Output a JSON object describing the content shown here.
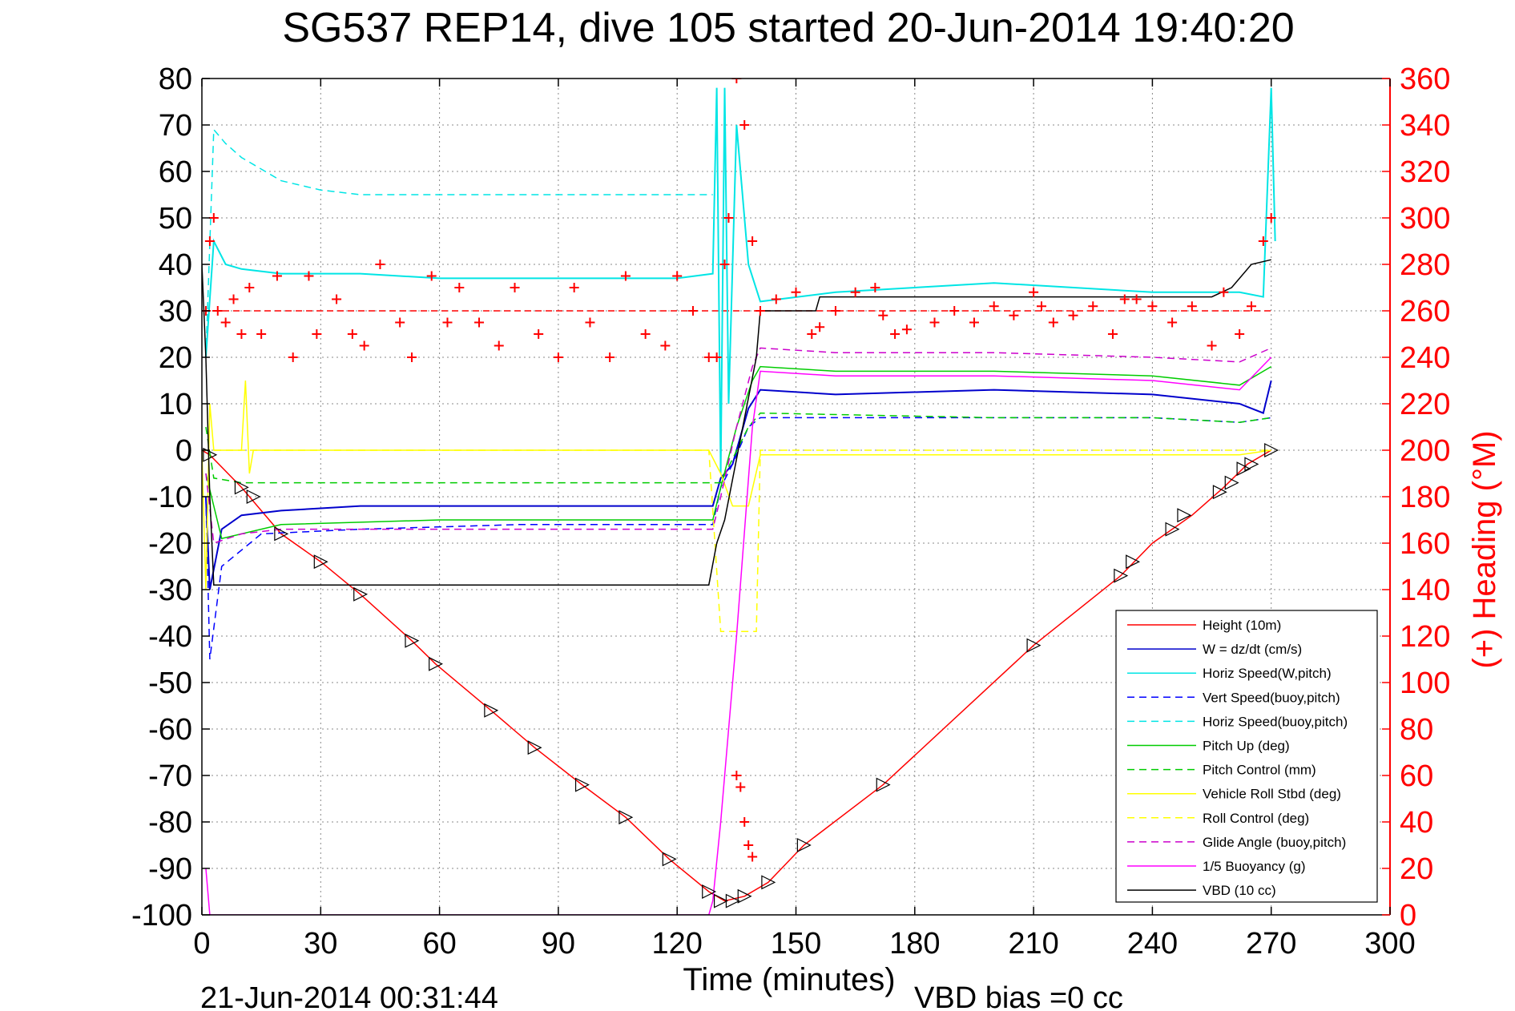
{
  "chart_data": {
    "type": "line",
    "title": "SG537 REP14, dive 105 started 20-Jun-2014 19:40:20",
    "xlabel": "Time (minutes)",
    "ylabel": "",
    "y2label": "(+) Heading (°M)",
    "xlim": [
      0,
      300
    ],
    "ylim": [
      -100,
      80
    ],
    "y2lim": [
      0,
      360
    ],
    "xticks": [
      "0",
      "30",
      "60",
      "90",
      "120",
      "150",
      "180",
      "210",
      "240",
      "270",
      "300"
    ],
    "yticks": [
      "80",
      "70",
      "60",
      "50",
      "40",
      "30",
      "20",
      "10",
      "0",
      "-10",
      "-20",
      "-30",
      "-40",
      "-50",
      "-60",
      "-70",
      "-80",
      "-90",
      "-100"
    ],
    "y2ticks": [
      "360",
      "340",
      "320",
      "300",
      "280",
      "260",
      "240",
      "220",
      "200",
      "180",
      "160",
      "140",
      "120",
      "100",
      "80",
      "60",
      "40",
      "20",
      "0"
    ],
    "grid": true,
    "legend_position": "bottom-right",
    "footer_left": "21-Jun-2014 00:31:44",
    "footer_right": "VBD bias =0 cc",
    "series": [
      {
        "name": "Height (10m)",
        "color": "#ff0000",
        "style": "solid",
        "x": [
          0,
          2,
          10,
          20,
          30,
          40,
          53,
          59,
          73,
          84,
          96,
          107,
          118,
          128,
          132,
          137,
          143,
          152,
          172,
          210,
          232,
          240,
          250,
          258,
          264,
          270
        ],
        "y": [
          0,
          -1,
          -8,
          -18,
          -24,
          -31,
          -41,
          -46,
          -56,
          -64,
          -72,
          -79,
          -88,
          -95,
          -97,
          -96,
          -93,
          -85,
          -72,
          -42,
          -27,
          -20,
          -14,
          -8,
          -3,
          0
        ]
      },
      {
        "name": "W = dz/dt (cm/s)",
        "color": "#0000cc",
        "style": "solid",
        "x": [
          1,
          2,
          5,
          10,
          20,
          40,
          70,
          100,
          129,
          131,
          134,
          138,
          141,
          160,
          200,
          240,
          262,
          268,
          270
        ],
        "y": [
          -10,
          -30,
          -17,
          -14,
          -13,
          -12,
          -12,
          -12,
          -12,
          -6,
          -3,
          9,
          13,
          12,
          13,
          12,
          10,
          8,
          15
        ]
      },
      {
        "name": "Horiz Speed(W,pitch)",
        "color": "#00e5e5",
        "style": "solid",
        "x": [
          1,
          3,
          6,
          10,
          20,
          40,
          60,
          80,
          100,
          120,
          129,
          130,
          131,
          132,
          133,
          135,
          138,
          141,
          160,
          200,
          240,
          262,
          268,
          270,
          271
        ],
        "y": [
          20,
          45,
          40,
          39,
          38,
          38,
          37,
          37,
          37,
          37,
          38,
          78,
          -5,
          78,
          10,
          70,
          40,
          32,
          34,
          36,
          34,
          34,
          33,
          78,
          45
        ]
      },
      {
        "name": "Vert Speed(buoy,pitch)",
        "color": "#0000ff",
        "style": "dashed",
        "x": [
          1,
          2,
          5,
          15,
          40,
          80,
          129,
          131,
          134,
          138,
          141,
          160,
          200,
          240,
          262,
          270
        ],
        "y": [
          -10,
          -45,
          -25,
          -18,
          -17,
          -16,
          -16,
          -8,
          -3,
          5,
          7,
          7,
          7,
          7,
          6,
          7
        ]
      },
      {
        "name": "Horiz Speed(buoy,pitch)",
        "color": "#00e5e5",
        "style": "dashed",
        "x": [
          1,
          3,
          6,
          10,
          20,
          30,
          40,
          60,
          80,
          100,
          128,
          129
        ],
        "y": [
          20,
          69,
          66,
          63,
          58,
          56,
          55,
          55,
          55,
          55,
          55,
          55
        ]
      },
      {
        "name": "Pitch Up (deg)",
        "color": "#00cc00",
        "style": "solid",
        "x": [
          1,
          5,
          20,
          60,
          100,
          129,
          131,
          135,
          139,
          141,
          160,
          200,
          240,
          262,
          270
        ],
        "y": [
          -5,
          -19,
          -16,
          -15,
          -15,
          -15,
          -8,
          5,
          15,
          18,
          17,
          17,
          16,
          14,
          18
        ]
      },
      {
        "name": "Pitch Control (mm)",
        "color": "#00cc00",
        "style": "dashed",
        "x": [
          1,
          3,
          10,
          60,
          100,
          129,
          131,
          138,
          141,
          200,
          240,
          262,
          270
        ],
        "y": [
          5,
          -6,
          -7,
          -7,
          -7,
          -7,
          -7,
          5,
          8,
          7,
          7,
          6,
          7
        ]
      },
      {
        "name": "Vehicle Roll Stbd (deg)",
        "color": "#ffff00",
        "style": "solid",
        "x": [
          0,
          1,
          2,
          3,
          10,
          11,
          12,
          13,
          60,
          100,
          128,
          131,
          134,
          138,
          141,
          200,
          240,
          262,
          270
        ],
        "y": [
          0,
          -30,
          10,
          0,
          0,
          15,
          -5,
          0,
          0,
          0,
          0,
          -5,
          -12,
          -12,
          -1,
          -1,
          -1,
          -1,
          0
        ]
      },
      {
        "name": "Roll Control (deg)",
        "color": "#ffff00",
        "style": "dashed",
        "x": [
          0,
          10,
          20,
          40,
          60,
          80,
          100,
          128,
          131,
          134,
          140,
          141,
          160,
          200,
          240,
          270
        ],
        "y": [
          0,
          0,
          0,
          0,
          0,
          0,
          0,
          0,
          -39,
          -39,
          -39,
          0,
          0,
          0,
          0,
          0
        ]
      },
      {
        "name": "Glide Angle (buoy,pitch)",
        "color": "#cc00cc",
        "style": "dashed",
        "x": [
          1,
          3,
          10,
          20,
          60,
          100,
          129,
          131,
          135,
          139,
          141,
          160,
          200,
          240,
          262,
          270
        ],
        "y": [
          -5,
          -20,
          -18,
          -17,
          -17,
          -17,
          -17,
          -10,
          5,
          18,
          22,
          21,
          21,
          20,
          19,
          22
        ]
      },
      {
        "name": "1/5 Buoyancy (g)",
        "color": "#ff00ff",
        "style": "solid",
        "x": [
          1,
          2,
          3,
          128,
          129,
          131,
          135,
          139,
          141,
          160,
          200,
          240,
          262,
          270
        ],
        "y": [
          -90,
          -100,
          -100,
          -100,
          -97,
          -80,
          -40,
          5,
          17,
          16,
          16,
          15,
          13,
          20
        ]
      },
      {
        "name": "VBD (10 cc)",
        "color": "#000000",
        "style": "solid",
        "x": [
          0,
          1,
          2,
          3,
          20,
          60,
          100,
          128,
          130,
          132,
          140,
          141,
          150,
          155,
          156,
          200,
          255,
          260,
          265,
          270
        ],
        "y": [
          40,
          20,
          -10,
          -29,
          -29,
          -29,
          -29,
          -29,
          -20,
          -15,
          20,
          30,
          30,
          30,
          33,
          33,
          33,
          35,
          40,
          41
        ]
      }
    ],
    "heading_series": {
      "name": "(+) Heading (°M)",
      "color": "#ff0000",
      "marker": "+",
      "x": [
        1,
        2,
        3,
        4,
        6,
        8,
        10,
        12,
        15,
        19,
        23,
        27,
        29,
        34,
        38,
        41,
        45,
        50,
        53,
        58,
        62,
        65,
        70,
        75,
        79,
        85,
        90,
        94,
        98,
        103,
        107,
        112,
        117,
        120,
        124,
        128,
        130,
        132,
        133,
        135,
        137,
        139,
        141,
        145,
        150,
        154,
        156,
        160,
        165,
        170,
        172,
        175,
        178,
        185,
        190,
        195,
        200,
        205,
        210,
        212,
        215,
        220,
        225,
        230,
        233,
        236,
        240,
        245,
        250,
        255,
        258,
        262,
        265,
        268,
        270
      ],
      "y": [
        260,
        290,
        300,
        260,
        255,
        265,
        250,
        270,
        250,
        275,
        240,
        275,
        250,
        265,
        250,
        245,
        280,
        255,
        240,
        275,
        255,
        270,
        255,
        245,
        270,
        250,
        240,
        270,
        255,
        240,
        275,
        250,
        245,
        275,
        260,
        240,
        240,
        280,
        300,
        360,
        340,
        290,
        260,
        265,
        268,
        250,
        253,
        260,
        268,
        270,
        258,
        250,
        252,
        255,
        260,
        255,
        262,
        258,
        268,
        262,
        255,
        258,
        262,
        250,
        265,
        265,
        262,
        255,
        262,
        245,
        268,
        250,
        262,
        290,
        300
      ]
    },
    "heading_ref": {
      "y": 260,
      "x": [
        0,
        130,
        150,
        270
      ]
    },
    "bottom_heading": {
      "x": [
        135,
        136,
        137,
        138,
        139
      ],
      "y": [
        60,
        55,
        40,
        30,
        25
      ]
    },
    "marker_points": {
      "x": [
        2,
        10,
        13,
        20,
        30,
        40,
        53,
        59,
        73,
        84,
        96,
        107,
        118,
        128,
        131,
        134,
        137,
        143,
        152,
        172,
        210,
        232,
        235,
        245,
        248,
        257,
        260,
        263,
        265,
        270
      ],
      "y": [
        -1,
        -8,
        -10,
        -18,
        -24,
        -31,
        -41,
        -46,
        -56,
        -64,
        -72,
        -79,
        -88,
        -95,
        -97,
        -97,
        -96,
        -93,
        -85,
        -72,
        -42,
        -27,
        -24,
        -17,
        -14,
        -9,
        -7,
        -4,
        -3,
        0
      ]
    }
  }
}
